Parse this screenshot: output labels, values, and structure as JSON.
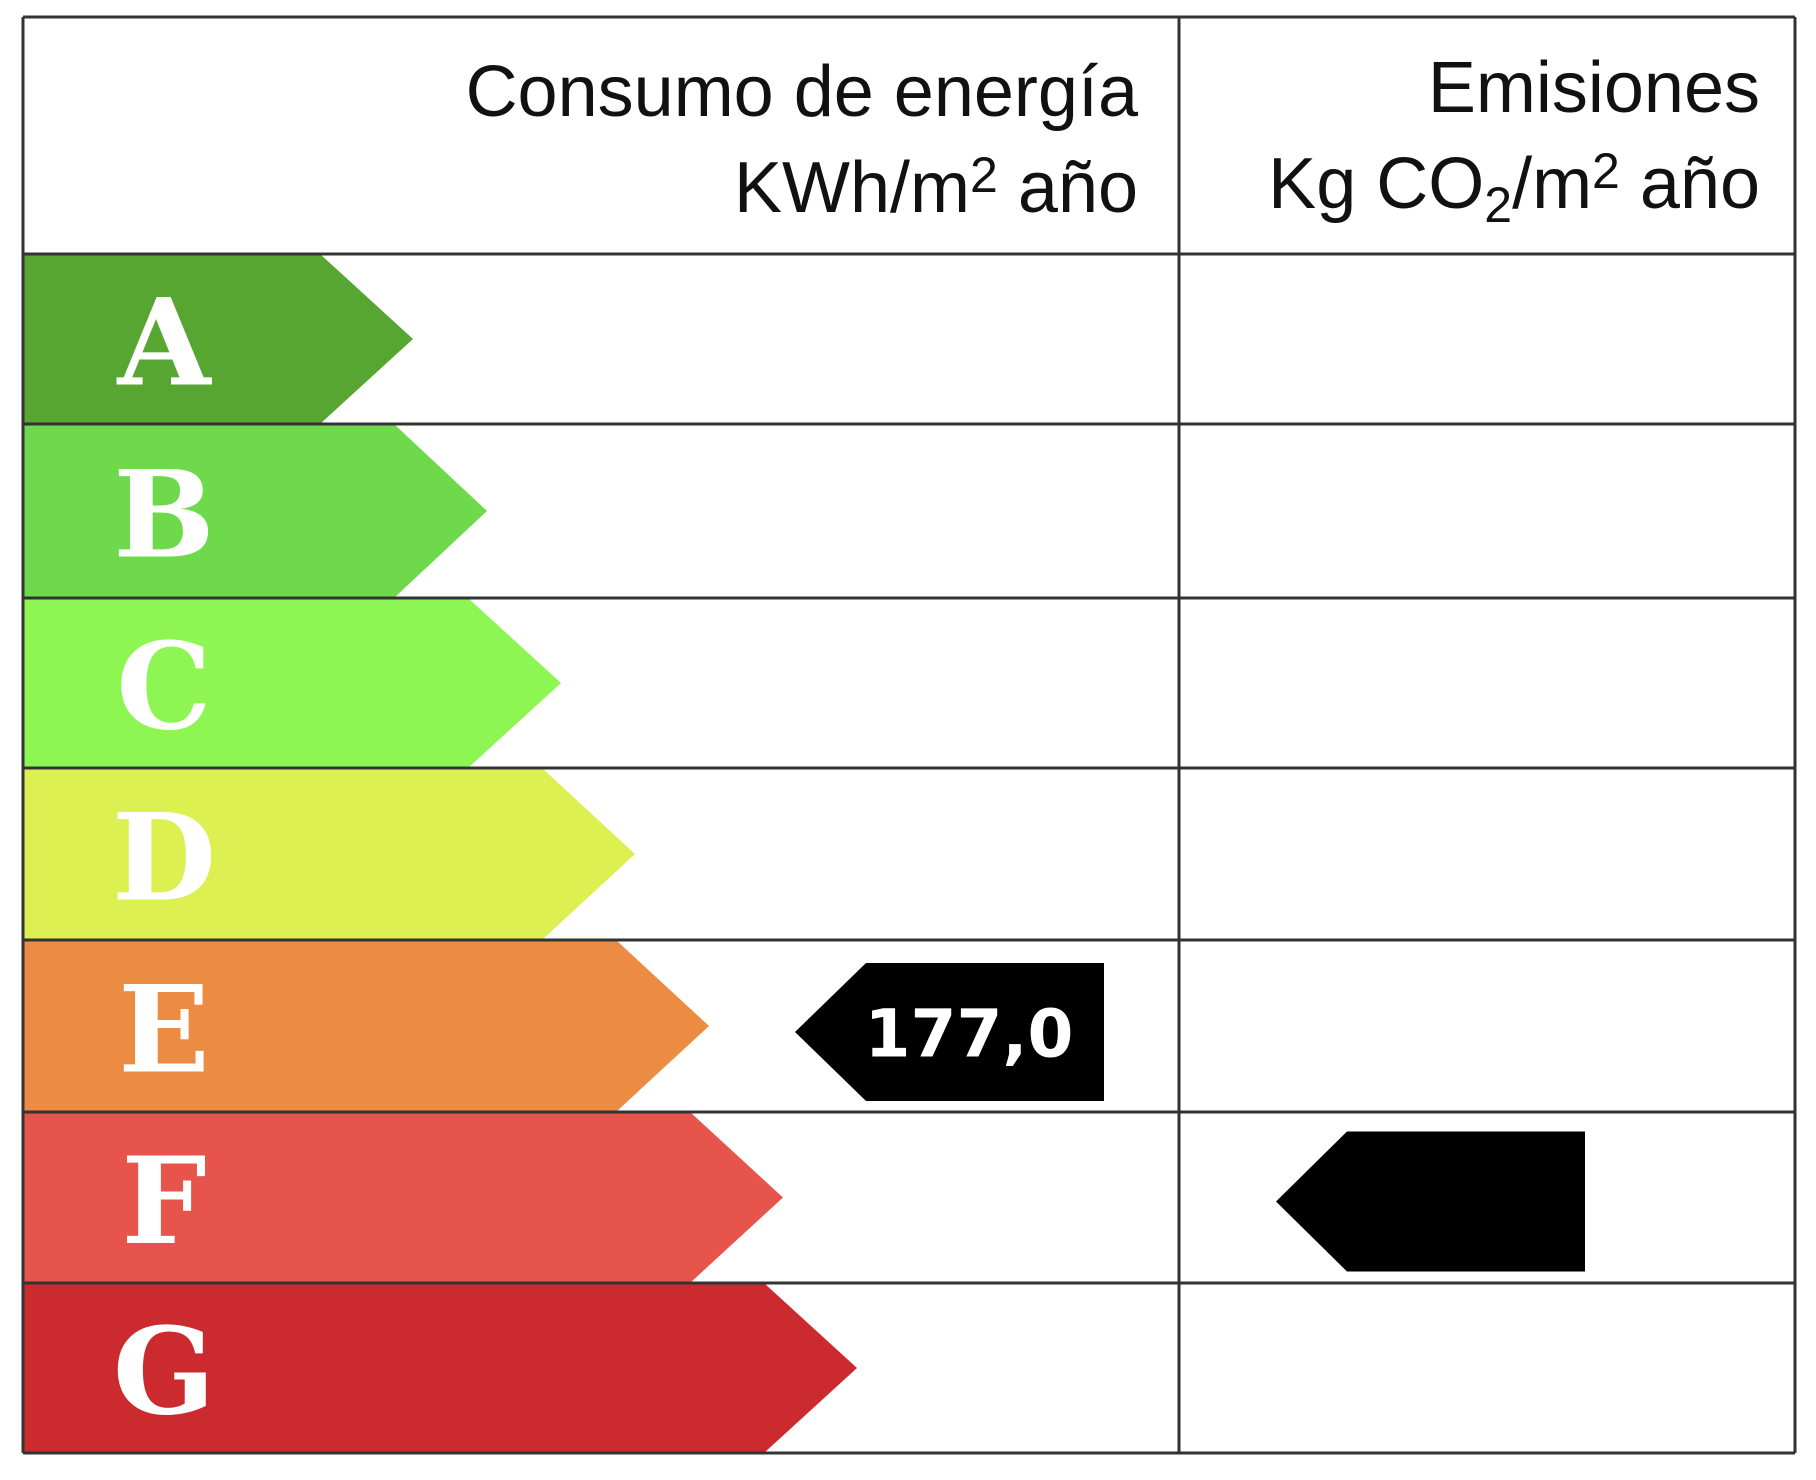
{
  "header": {
    "consumption": {
      "title": "Consumo de energía",
      "unit": [
        "KWh/m",
        "2",
        " año"
      ]
    },
    "emissions": {
      "title": "Emisiones",
      "unit": [
        "Kg CO",
        "2",
        "/m",
        "2",
        " año"
      ]
    }
  },
  "rows": [
    {
      "grade": "A",
      "color": "#58a632"
    },
    {
      "grade": "B",
      "color": "#6fd94c"
    },
    {
      "grade": "C",
      "color": "#8df652"
    },
    {
      "grade": "D",
      "color": "#ddf052"
    },
    {
      "grade": "E",
      "color": "#ec8c42",
      "consumption": "177,0"
    },
    {
      "grade": "F",
      "color": "#e6544c",
      "emissions_marker": true
    },
    {
      "grade": "G",
      "color": "#cb2b2f"
    }
  ]
}
